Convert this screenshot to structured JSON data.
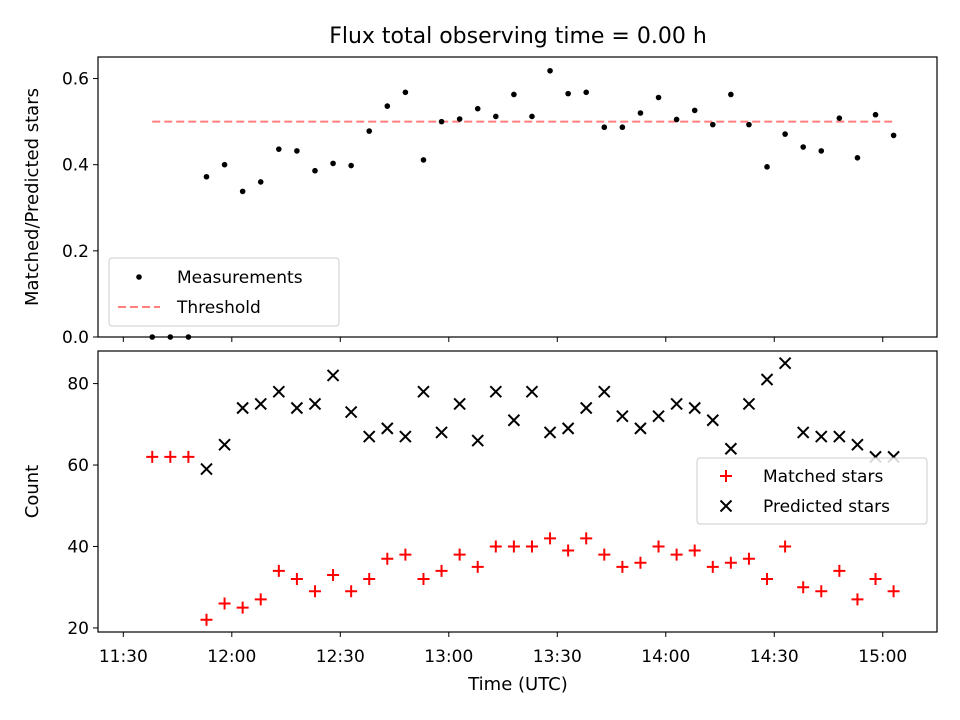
{
  "chart_data": [
    {
      "type": "scatter",
      "title": "Flux total observing time = 0.00 h",
      "xlabel": "",
      "ylabel": "Matched/Predicted stars",
      "xlim": [
        -7,
        225
      ],
      "ylim": [
        0,
        0.65
      ],
      "yticks": [
        0.0,
        0.2,
        0.4,
        0.6
      ],
      "ytick_labels": [
        "0.0",
        "0.2",
        "0.4",
        "0.6"
      ],
      "x_minutes_after_1130": [
        8,
        13,
        18,
        23,
        28,
        33,
        38,
        43,
        48,
        53,
        58,
        63,
        68,
        73,
        78,
        83,
        88,
        93,
        98,
        103,
        108,
        113,
        118,
        123,
        128,
        133,
        138,
        143,
        148,
        153,
        158,
        163,
        168,
        173,
        178,
        183,
        188,
        193,
        198,
        203,
        208,
        213
      ],
      "series": [
        {
          "name": "Measurements",
          "color": "#000000",
          "marker": "dot",
          "values": [
            0.0,
            0.0,
            0.0,
            0.372,
            0.4,
            0.338,
            0.36,
            0.436,
            0.432,
            0.386,
            0.403,
            0.398,
            0.478,
            0.536,
            0.568,
            0.411,
            0.5,
            0.506,
            0.53,
            0.512,
            0.563,
            0.512,
            0.618,
            0.565,
            0.568,
            0.487,
            0.487,
            0.52,
            0.556,
            0.505,
            0.526,
            0.493,
            0.563,
            0.493,
            0.395,
            0.471,
            0.441,
            0.432,
            0.508,
            0.416,
            0.516,
            0.468
          ]
        }
      ],
      "threshold": {
        "name": "Threshold",
        "value": 0.5,
        "x_range": [
          8,
          213
        ],
        "color": "#ff7f7f"
      },
      "legend": {
        "location": "lower-left",
        "entries": [
          "Measurements",
          "Threshold"
        ]
      }
    },
    {
      "type": "scatter",
      "title": "",
      "xlabel": "Time (UTC)",
      "ylabel": "Count",
      "xlim": [
        -7,
        225
      ],
      "ylim": [
        19,
        88
      ],
      "yticks": [
        20,
        40,
        60,
        80
      ],
      "ytick_labels": [
        "20",
        "40",
        "60",
        "80"
      ],
      "xticks": [
        0,
        30,
        60,
        90,
        120,
        150,
        180,
        210
      ],
      "xtick_labels": [
        "11:30",
        "12:00",
        "12:30",
        "13:00",
        "13:30",
        "14:00",
        "14:30",
        "15:00"
      ],
      "x_minutes_after_1130": [
        8,
        13,
        18,
        23,
        28,
        33,
        38,
        43,
        48,
        53,
        58,
        63,
        68,
        73,
        78,
        83,
        88,
        93,
        98,
        103,
        108,
        113,
        118,
        123,
        128,
        133,
        138,
        143,
        148,
        153,
        158,
        163,
        168,
        173,
        178,
        183,
        188,
        193,
        198,
        203,
        208,
        213
      ],
      "series": [
        {
          "name": "Matched stars",
          "color": "#ff0000",
          "marker": "plus",
          "values": [
            62,
            62,
            62,
            22,
            26,
            25,
            27,
            34,
            32,
            29,
            33,
            29,
            32,
            37,
            38,
            32,
            34,
            38,
            35,
            40,
            40,
            40,
            42,
            39,
            42,
            38,
            35,
            36,
            40,
            38,
            39,
            35,
            36,
            37,
            32,
            40,
            30,
            29,
            34,
            27,
            32,
            29
          ]
        },
        {
          "name": "Predicted stars",
          "color": "#000000",
          "marker": "x",
          "values": [
            null,
            null,
            null,
            59,
            65,
            74,
            75,
            78,
            74,
            75,
            82,
            73,
            67,
            69,
            67,
            78,
            68,
            75,
            66,
            78,
            71,
            78,
            68,
            69,
            74,
            78,
            72,
            69,
            72,
            75,
            74,
            71,
            64,
            75,
            81,
            85,
            68,
            67,
            67,
            65,
            62,
            62
          ]
        }
      ],
      "legend": {
        "location": "center-right",
        "entries": [
          "Matched stars",
          "Predicted stars"
        ]
      }
    }
  ]
}
